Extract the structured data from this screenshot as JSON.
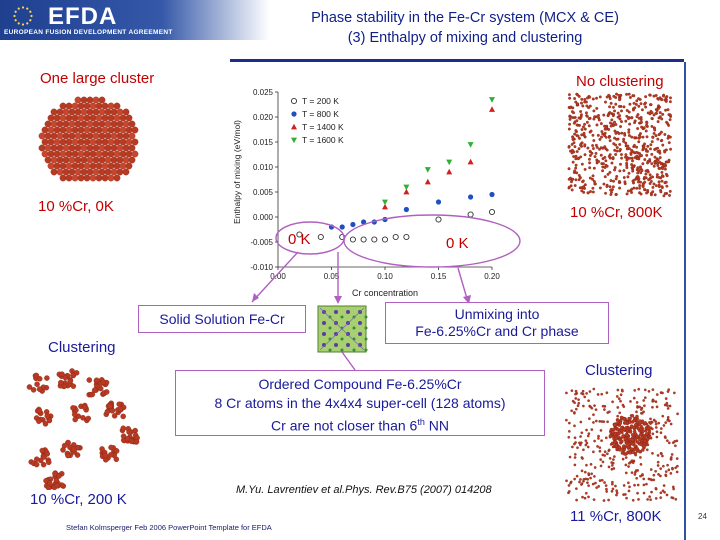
{
  "header": {
    "logo_text": "EFDA",
    "logo_subtitle": "EUROPEAN FUSION DEVELOPMENT AGREEMENT",
    "title_line1": "Phase stability in the Fe-Cr system (MCX & CE)",
    "title_line2": "(3) Enthalpy of mixing and clustering"
  },
  "labels": {
    "one_large_cluster": "One large cluster",
    "no_clustering": "No clustering",
    "cr10_0k": "10 %Cr, 0K",
    "cr10_800k": "10 %Cr, 800K",
    "zero_k_left": "0 K",
    "zero_k_right": "0 K",
    "solid_solution": "Solid Solution Fe-Cr",
    "unmixing_line1": "Unmixing into",
    "unmixing_line2": "Fe-6.25%Cr and Cr phase",
    "clustering_left": "Clustering",
    "clustering_right": "Clustering",
    "ordered_line1": "Ordered Compound Fe-6.25%Cr",
    "ordered_line2": "8 Cr atoms in the 4x4x4 super-cell (128 atoms)",
    "ordered_line3_a": "Cr are not closer than 6",
    "ordered_line3_sup": "th",
    "ordered_line3_b": " NN",
    "cr10_200k": "10 %Cr, 200 K",
    "cr11_800k": "11 %Cr, 800K",
    "reference": "M.Yu. Lavrentiev et al.Phys. Rev.B75 (2007) 014208",
    "footer": "Stefan Kolmsperger Feb 2006 PowerPoint Template for EFDA",
    "page_number": "24"
  },
  "colors": {
    "title": "#0f1f8a",
    "label_red": "#c00000",
    "cluster_red": "#b83a22",
    "rule_blue": "#1d2e8a",
    "box_border": "#b060c0"
  },
  "chart_data": {
    "type": "scatter",
    "xlabel": "Cr concentration",
    "ylabel": "Enthalpy of mixing (eV/mol)",
    "xlim": [
      0.0,
      0.2
    ],
    "ylim": [
      -0.01,
      0.025
    ],
    "xticks": [
      "0.00",
      "0.05",
      "0.10",
      "0.15",
      "0.20"
    ],
    "yticks": [
      "-0.010",
      "-0.005",
      "0.000",
      "0.005",
      "0.010",
      "0.015",
      "0.020",
      "0.025"
    ],
    "legend_position": "top-right",
    "series": [
      {
        "name": "T = 200 K",
        "marker": "circle-open",
        "color": "#333333",
        "x": [
          0.02,
          0.04,
          0.06,
          0.07,
          0.08,
          0.09,
          0.1,
          0.11,
          0.12,
          0.15,
          0.18,
          0.2
        ],
        "y": [
          -0.0035,
          -0.004,
          -0.004,
          -0.0045,
          -0.0045,
          -0.0045,
          -0.0045,
          -0.004,
          -0.004,
          -0.0005,
          0.0005,
          0.001
        ]
      },
      {
        "name": "T = 800 K",
        "marker": "circle",
        "color": "#2050c0",
        "x": [
          0.05,
          0.06,
          0.07,
          0.08,
          0.09,
          0.1,
          0.12,
          0.15,
          0.18,
          0.2
        ],
        "y": [
          -0.002,
          -0.002,
          -0.0015,
          -0.001,
          -0.001,
          -0.0005,
          0.0015,
          0.003,
          0.004,
          0.0045
        ]
      },
      {
        "name": "T = 1400 K",
        "marker": "triangle-up",
        "color": "#d02020",
        "x": [
          0.1,
          0.12,
          0.14,
          0.16,
          0.18,
          0.2
        ],
        "y": [
          0.002,
          0.005,
          0.007,
          0.009,
          0.011,
          0.0215
        ]
      },
      {
        "name": "T = 1600 K",
        "marker": "triangle-down",
        "color": "#30b030",
        "x": [
          0.1,
          0.12,
          0.14,
          0.16,
          0.18,
          0.2
        ],
        "y": [
          0.003,
          0.006,
          0.0095,
          0.011,
          0.0145,
          0.0235
        ]
      }
    ]
  }
}
